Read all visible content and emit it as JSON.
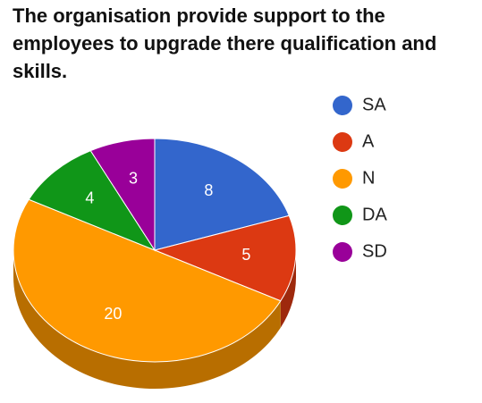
{
  "chart_data": {
    "type": "pie",
    "title": "The organisation provide support to the employees to upgrade there qualification and skills.",
    "categories": [
      "SA",
      "A",
      "N",
      "DA",
      "SD"
    ],
    "values": [
      8,
      5,
      20,
      4,
      3
    ],
    "colors": [
      "#3366cc",
      "#dc3912",
      "#ff9900",
      "#109618",
      "#990099"
    ],
    "legend": "right"
  }
}
